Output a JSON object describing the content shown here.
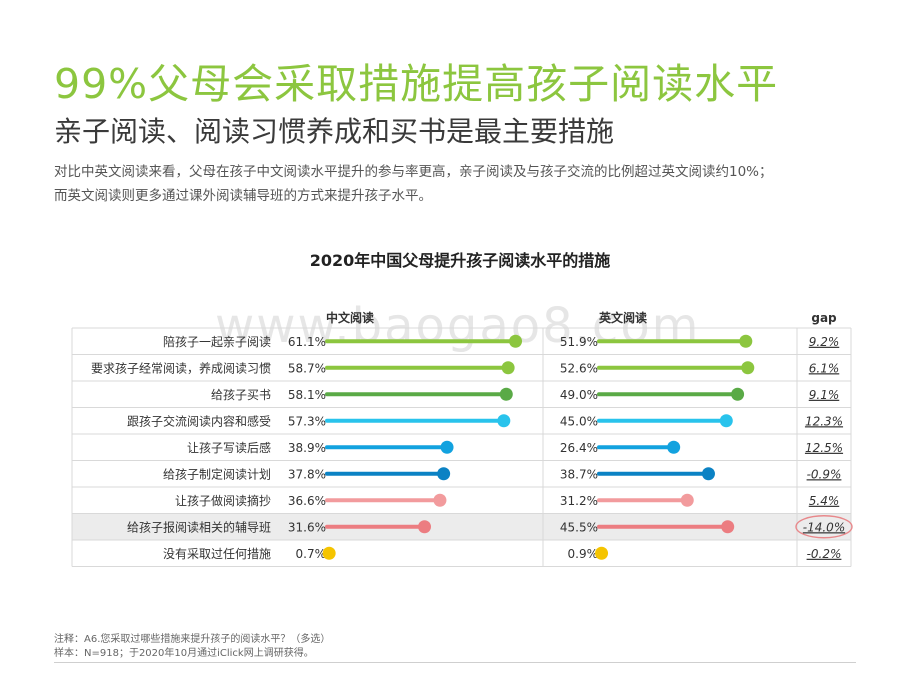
{
  "header": {
    "title": "99%父母会采取措施提高孩子阅读水平",
    "subtitle": "亲子阅读、阅读习惯养成和买书是最主要措施",
    "description_line1": "对比中英文阅读来看，父母在孩子中文阅读水平提升的参与率更高，亲子阅读及与孩子交流的比例超过英文阅读约10%；",
    "description_line2": "而英文阅读则更多通过课外阅读辅导班的方式来提升孩子水平。"
  },
  "watermark": "www.baogao8.com",
  "chart_data": {
    "type": "bar",
    "title": "2020年中国父母提升孩子阅读水平的措施",
    "column_headers": [
      "中文阅读",
      "英文阅读",
      "gap"
    ],
    "categories": [
      "陪孩子一起亲子阅读",
      "要求孩子经常阅读，养成阅读习惯",
      "给孩子买书",
      "跟孩子交流阅读内容和感受",
      "让孩子写读后感",
      "给孩子制定阅读计划",
      "让孩子做阅读摘抄",
      "给孩子报阅读相关的辅导班",
      "没有采取过任何措施"
    ],
    "series": [
      {
        "name": "中文阅读",
        "values": [
          61.1,
          58.7,
          58.1,
          57.3,
          38.9,
          37.8,
          36.6,
          31.6,
          0.7
        ],
        "labels": [
          "61.1%",
          "58.7%",
          "58.1%",
          "57.3%",
          "38.9%",
          "37.8%",
          "36.6%",
          "31.6%",
          "0.7%"
        ]
      },
      {
        "name": "英文阅读",
        "values": [
          51.9,
          52.6,
          49.0,
          45.0,
          26.4,
          38.7,
          31.2,
          45.5,
          0.9
        ],
        "labels": [
          "51.9%",
          "52.6%",
          "49.0%",
          "45.0%",
          "26.4%",
          "38.7%",
          "31.2%",
          "45.5%",
          "0.9%"
        ]
      }
    ],
    "gap": [
      9.2,
      6.1,
      9.1,
      12.3,
      12.5,
      -0.9,
      5.4,
      -14.0,
      -0.2
    ],
    "gap_labels": [
      "9.2%",
      "6.1%",
      "9.1%",
      "12.3%",
      "12.5%",
      "-0.9%",
      "5.4%",
      "-14.0%",
      "-0.2%"
    ],
    "highlight_row": 7,
    "bar_colors": [
      "#8cc63f",
      "#8cc63f",
      "#5aaa46",
      "#29c3ec",
      "#12a2df",
      "#0b82c4",
      "#f29b9d",
      "#ec7d81",
      "#f5c400"
    ],
    "xlim": [
      0,
      70
    ]
  },
  "footnote": {
    "line1": "注释：A6.您采取过哪些措施来提升孩子的阅读水平？（多选）",
    "line2": "样本：N=918；于2020年10月通过iClick网上调研获得。"
  }
}
